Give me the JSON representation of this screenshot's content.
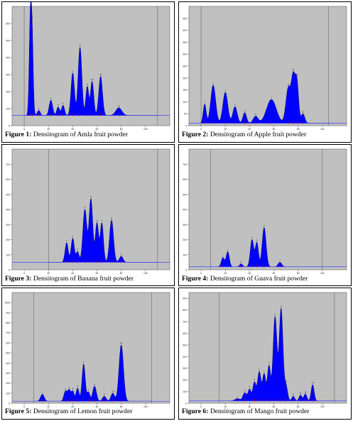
{
  "colors": {
    "plot_bg": "#c0c0c0",
    "fill": "#0000ff",
    "outline": "#000066",
    "baseline": "#4444ff",
    "marker": "#cc0000"
  },
  "figures": [
    {
      "caption_label": "Figure 1:",
      "caption_text": "Densitogram of Amla fruit powder",
      "chart_data": {
        "type": "area",
        "x_range": [
          -10,
          120
        ],
        "y_range": [
          0,
          700
        ],
        "x_ticks": [
          "0",
          "20",
          "40",
          "60",
          "80",
          "100"
        ],
        "y_ticks": [
          "0",
          "100",
          "200",
          "300",
          "400",
          "500",
          "600"
        ],
        "baseline": 60,
        "start_line_x": 0,
        "end_line_x": 110,
        "peaks": [
          {
            "x": 5,
            "h": 520,
            "w": 0.9
          },
          {
            "x": 6.5,
            "h": 440,
            "w": 0.9
          },
          {
            "x": 12,
            "h": 30,
            "w": 1.2
          },
          {
            "x": 22,
            "h": 90,
            "w": 1.4
          },
          {
            "x": 28,
            "h": 50,
            "w": 1.2
          },
          {
            "x": 32,
            "h": 60,
            "w": 1.2
          },
          {
            "x": 40,
            "h": 250,
            "w": 1.4
          },
          {
            "x": 46,
            "h": 400,
            "w": 1.5
          },
          {
            "x": 52,
            "h": 170,
            "w": 1.2
          },
          {
            "x": 56,
            "h": 200,
            "w": 1.3
          },
          {
            "x": 63,
            "h": 230,
            "w": 1.5
          },
          {
            "x": 78,
            "h": 45,
            "w": 2.5
          }
        ]
      }
    },
    {
      "caption_label": "Figure 2:",
      "caption_text": "Densitogram of Apple fruit powder",
      "chart_data": {
        "type": "area",
        "x_range": [
          -10,
          120
        ],
        "y_range": [
          0,
          500
        ],
        "x_ticks": [
          "0",
          "20",
          "40",
          "60",
          "80",
          "100"
        ],
        "y_ticks": [
          "0",
          "50",
          "100",
          "150",
          "200",
          "250",
          "300",
          "350",
          "400",
          "450"
        ],
        "baseline": 10,
        "start_line_x": 0,
        "end_line_x": 105,
        "peaks": [
          {
            "x": 3,
            "h": 80,
            "w": 1.2
          },
          {
            "x": 10,
            "h": 160,
            "w": 2
          },
          {
            "x": 20,
            "h": 130,
            "w": 2
          },
          {
            "x": 28,
            "h": 70,
            "w": 1.8
          },
          {
            "x": 36,
            "h": 45,
            "w": 1.5
          },
          {
            "x": 45,
            "h": 30,
            "w": 2
          },
          {
            "x": 58,
            "h": 100,
            "w": 4
          },
          {
            "x": 72,
            "h": 150,
            "w": 2
          },
          {
            "x": 76,
            "h": 180,
            "w": 1.5
          },
          {
            "x": 79,
            "h": 170,
            "w": 1.4
          },
          {
            "x": 84,
            "h": 40,
            "w": 1.5
          }
        ]
      }
    },
    {
      "caption_label": "Figure 3:",
      "caption_text": "Densitogram of Banana fruit powder",
      "chart_data": {
        "type": "area",
        "x_range": [
          -10,
          120
        ],
        "y_range": [
          0,
          800
        ],
        "x_ticks": [
          "0",
          "20",
          "40",
          "60",
          "80",
          "100"
        ],
        "y_ticks": [
          "0",
          "100",
          "200",
          "300",
          "400",
          "500",
          "600",
          "700"
        ],
        "baseline": 50,
        "start_line_x": 20,
        "end_line_x": 110,
        "peaks": [
          {
            "x": 35,
            "h": 130,
            "w": 1.3
          },
          {
            "x": 40,
            "h": 160,
            "w": 1.3
          },
          {
            "x": 44,
            "h": 70,
            "w": 1.2
          },
          {
            "x": 50,
            "h": 350,
            "w": 1.6
          },
          {
            "x": 55,
            "h": 420,
            "w": 1.5
          },
          {
            "x": 60,
            "h": 260,
            "w": 1.3
          },
          {
            "x": 64,
            "h": 260,
            "w": 1.3
          },
          {
            "x": 72,
            "h": 280,
            "w": 1.6
          },
          {
            "x": 80,
            "h": 40,
            "w": 1.5
          }
        ]
      }
    },
    {
      "caption_label": "Figure 4:",
      "caption_text": "Densitogram of Guava fruit powder",
      "chart_data": {
        "type": "area",
        "x_range": [
          -10,
          120
        ],
        "y_range": [
          0,
          800
        ],
        "x_ticks": [
          "0",
          "20",
          "40",
          "60",
          "80",
          "100"
        ],
        "y_ticks": [
          "0",
          "100",
          "200",
          "300",
          "400",
          "500",
          "600",
          "700"
        ],
        "baseline": 20,
        "start_line_x": 8,
        "end_line_x": 100,
        "peaks": [
          {
            "x": 18,
            "h": 60,
            "w": 1.3
          },
          {
            "x": 22,
            "h": 100,
            "w": 1.3
          },
          {
            "x": 33,
            "h": 20,
            "w": 1.2
          },
          {
            "x": 42,
            "h": 180,
            "w": 1.4
          },
          {
            "x": 46,
            "h": 160,
            "w": 1.3
          },
          {
            "x": 52,
            "h": 260,
            "w": 1.6
          },
          {
            "x": 65,
            "h": 30,
            "w": 1.5
          }
        ]
      }
    },
    {
      "caption_label": "Figure 5:",
      "caption_text": "Densitogram of Lemon fruit powder",
      "chart_data": {
        "type": "area",
        "x_range": [
          -10,
          120
        ],
        "y_range": [
          0,
          1100
        ],
        "x_ticks": [
          "0",
          "20",
          "40",
          "60",
          "80",
          "100"
        ],
        "y_ticks": [
          "0",
          "100",
          "200",
          "300",
          "400",
          "500",
          "600",
          "700",
          "800",
          "900",
          "1000"
        ],
        "baseline": 20,
        "start_line_x": 8,
        "end_line_x": 105,
        "peaks": [
          {
            "x": 15,
            "h": 70,
            "w": 1.5
          },
          {
            "x": 34,
            "h": 100,
            "w": 1.3
          },
          {
            "x": 37,
            "h": 110,
            "w": 1.2
          },
          {
            "x": 40,
            "h": 100,
            "w": 1.2
          },
          {
            "x": 44,
            "h": 130,
            "w": 1.2
          },
          {
            "x": 49,
            "h": 370,
            "w": 1.3
          },
          {
            "x": 53,
            "h": 90,
            "w": 1.2
          },
          {
            "x": 58,
            "h": 150,
            "w": 1.5
          },
          {
            "x": 66,
            "h": 50,
            "w": 1.5
          },
          {
            "x": 73,
            "h": 80,
            "w": 1.5
          },
          {
            "x": 80,
            "h": 560,
            "w": 1.8
          }
        ]
      }
    },
    {
      "caption_label": "Figure 6:",
      "caption_text": "Densitogram of Mango fruit powder",
      "chart_data": {
        "type": "area",
        "x_range": [
          -10,
          120
        ],
        "y_range": [
          0,
          950
        ],
        "x_ticks": [
          "0",
          "20",
          "40",
          "60",
          "80",
          "100"
        ],
        "y_ticks": [
          "0",
          "100",
          "200",
          "300",
          "400",
          "500",
          "600",
          "700",
          "800",
          "900"
        ],
        "baseline": 20,
        "start_line_x": 15,
        "end_line_x": 110,
        "peaks": [
          {
            "x": 30,
            "h": 20,
            "w": 2
          },
          {
            "x": 36,
            "h": 70,
            "w": 1.5
          },
          {
            "x": 40,
            "h": 100,
            "w": 1.3
          },
          {
            "x": 44,
            "h": 160,
            "w": 1.3
          },
          {
            "x": 48,
            "h": 250,
            "w": 1.4
          },
          {
            "x": 52,
            "h": 230,
            "w": 1.3
          },
          {
            "x": 56,
            "h": 300,
            "w": 1.3
          },
          {
            "x": 61,
            "h": 720,
            "w": 1.6
          },
          {
            "x": 66,
            "h": 790,
            "w": 1.5
          },
          {
            "x": 70,
            "h": 130,
            "w": 1.3
          },
          {
            "x": 76,
            "h": 40,
            "w": 1.2
          },
          {
            "x": 82,
            "h": 50,
            "w": 1.2
          },
          {
            "x": 86,
            "h": 60,
            "w": 1.2
          },
          {
            "x": 92,
            "h": 140,
            "w": 1.2
          }
        ]
      }
    }
  ]
}
